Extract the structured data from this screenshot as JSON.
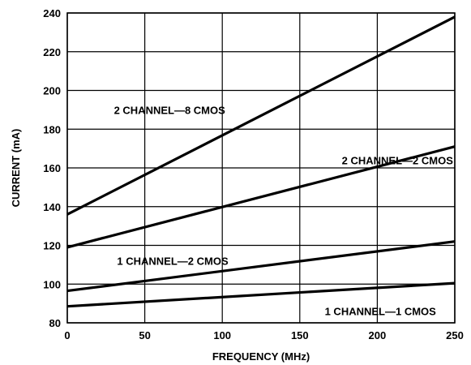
{
  "chart_data": {
    "type": "line",
    "title": "",
    "xlabel": "FREQUENCY (MHz)",
    "ylabel": "CURRENT (mA)",
    "xlim": [
      0,
      250
    ],
    "ylim": [
      80,
      240
    ],
    "xticks": [
      0,
      50,
      100,
      150,
      200,
      250
    ],
    "yticks": [
      80,
      100,
      120,
      140,
      160,
      180,
      200,
      220,
      240
    ],
    "grid": true,
    "legend": "none",
    "series": [
      {
        "name": "2 CHANNEL—8 CMOS",
        "x": [
          0,
          250
        ],
        "y": [
          136,
          238
        ],
        "label_at": [
          66,
          190
        ]
      },
      {
        "name": "2 CHANNEL—2 CMOS",
        "x": [
          0,
          250
        ],
        "y": [
          119,
          171
        ],
        "label_at": [
          213,
          164
        ]
      },
      {
        "name": "1 CHANNEL—2 CMOS",
        "x": [
          0,
          250
        ],
        "y": [
          96.5,
          122
        ],
        "label_at": [
          68,
          112
        ]
      },
      {
        "name": "1 CHANNEL—1 CMOS",
        "x": [
          0,
          250
        ],
        "y": [
          88.5,
          100.5
        ],
        "label_at": [
          202,
          86
        ]
      }
    ]
  }
}
